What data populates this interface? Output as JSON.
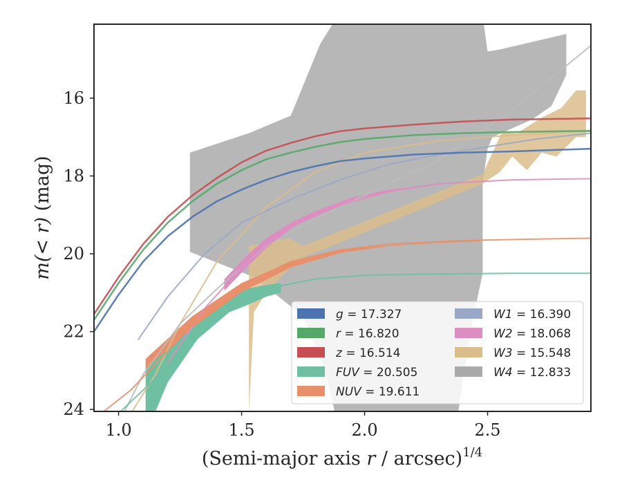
{
  "chart_data": {
    "type": "area",
    "xlabel_main": "(Semi-major axis ",
    "xlabel_var": "r",
    "xlabel_rest": " / arcsec)",
    "xlabel_sup": "1/4",
    "ylabel_main": "m(< r)",
    "ylabel_unit": " (mag)",
    "xlim": [
      0.9,
      2.92
    ],
    "ylim": [
      24.05,
      14.1
    ],
    "y_inverted": true,
    "xticks": [
      1.0,
      1.5,
      2.0,
      2.5
    ],
    "xtick_labels": [
      "1.0",
      "1.5",
      "2.0",
      "2.5"
    ],
    "yticks": [
      16,
      18,
      20,
      22,
      24
    ],
    "ytick_labels": [
      "16",
      "18",
      "20",
      "22",
      "24"
    ],
    "legend_position": "lower-right",
    "legend": [
      {
        "label": "g",
        "value": "= 17.327",
        "color": "#4c72b0"
      },
      {
        "label": "r",
        "value": "= 16.820",
        "color": "#55a868"
      },
      {
        "label": "z",
        "value": "= 16.514",
        "color": "#c44e52"
      },
      {
        "label": "FUV",
        "value": "= 20.505",
        "color": "#6fbfa2"
      },
      {
        "label": "NUV",
        "value": "= 19.611",
        "color": "#e8906c"
      },
      {
        "label": "W1",
        "value": "= 16.390",
        "color": "#9aa8c8"
      },
      {
        "label": "W2",
        "value": "= 18.068",
        "color": "#dd8ec1"
      },
      {
        "label": "W3",
        "value": "= 15.548",
        "color": "#dbbd8c"
      },
      {
        "label": "W4",
        "value": "= 12.833",
        "color": "#aaaaaa"
      }
    ],
    "series": [
      {
        "name": "W4",
        "kind": "band",
        "color": "#aaaaaa",
        "opacity": 0.85,
        "upper": [
          [
            1.29,
            17.4
          ],
          [
            1.53,
            16.9
          ],
          [
            1.7,
            16.45
          ],
          [
            1.82,
            14.6
          ],
          [
            1.9,
            13.8
          ],
          [
            2.3,
            13.8
          ],
          [
            2.48,
            13.9
          ],
          [
            2.5,
            14.8
          ],
          [
            2.55,
            14.75
          ],
          [
            2.82,
            14.35
          ],
          [
            2.82,
            15.4
          ],
          [
            2.76,
            16.2
          ],
          [
            2.68,
            16.55
          ]
        ],
        "lower": [
          [
            1.29,
            19.95
          ],
          [
            1.35,
            20.1
          ],
          [
            1.55,
            20.6
          ],
          [
            1.75,
            21.6
          ],
          [
            1.84,
            23.0
          ],
          [
            1.88,
            24.1
          ],
          [
            2.38,
            24.1
          ],
          [
            2.43,
            22.0
          ],
          [
            2.48,
            20.5
          ],
          [
            2.48,
            18.2
          ],
          [
            2.5,
            17.3
          ],
          [
            2.52,
            17.0
          ]
        ]
      },
      {
        "name": "W3",
        "kind": "band",
        "color": "#dbbd8c",
        "opacity": 0.85,
        "upper": [
          [
            1.53,
            19.8
          ],
          [
            1.69,
            19.6
          ],
          [
            1.7,
            19.62
          ],
          [
            1.75,
            19.8
          ],
          [
            2.48,
            17.95
          ],
          [
            2.52,
            17.4
          ],
          [
            2.56,
            16.85
          ],
          [
            2.62,
            16.9
          ],
          [
            2.72,
            16.5
          ],
          [
            2.8,
            16.25
          ],
          [
            2.86,
            15.8
          ],
          [
            2.9,
            15.8
          ]
        ],
        "lower": [
          [
            1.53,
            24.1
          ],
          [
            1.55,
            21.5
          ],
          [
            1.6,
            21.0
          ],
          [
            1.69,
            20.4
          ],
          [
            1.75,
            20.1
          ],
          [
            2.48,
            18.2
          ],
          [
            2.55,
            17.9
          ],
          [
            2.6,
            17.5
          ],
          [
            2.66,
            17.85
          ],
          [
            2.72,
            17.4
          ],
          [
            2.78,
            17.5
          ],
          [
            2.86,
            17.0
          ],
          [
            2.9,
            17.0
          ]
        ]
      },
      {
        "name": "FUV",
        "kind": "band",
        "color": "#6fbfa2",
        "opacity": 1.0,
        "upper": [
          [
            1.11,
            22.8
          ],
          [
            1.2,
            22.3
          ],
          [
            1.3,
            21.8
          ],
          [
            1.4,
            21.35
          ],
          [
            1.52,
            20.9
          ],
          [
            1.6,
            20.8
          ],
          [
            1.66,
            20.75
          ]
        ],
        "lower": [
          [
            1.11,
            24.05
          ],
          [
            1.15,
            24.05
          ],
          [
            1.2,
            23.3
          ],
          [
            1.32,
            22.2
          ],
          [
            1.45,
            21.5
          ],
          [
            1.53,
            21.3
          ],
          [
            1.6,
            21.1
          ],
          [
            1.66,
            21.0
          ]
        ]
      },
      {
        "name": "NUV",
        "kind": "band",
        "color": "#e8906c",
        "opacity": 1.0,
        "upper": [
          [
            1.11,
            22.7
          ],
          [
            1.3,
            21.6
          ],
          [
            1.5,
            20.75
          ],
          [
            1.7,
            20.2
          ],
          [
            1.9,
            19.9
          ],
          [
            2.1,
            19.78
          ],
          [
            2.3,
            19.7
          ],
          [
            2.47,
            19.65
          ]
        ],
        "lower": [
          [
            1.11,
            22.95
          ],
          [
            1.3,
            21.9
          ],
          [
            1.5,
            20.98
          ],
          [
            1.7,
            20.35
          ],
          [
            1.9,
            19.98
          ],
          [
            2.1,
            19.8
          ],
          [
            2.3,
            19.72
          ],
          [
            2.47,
            19.68
          ]
        ]
      },
      {
        "name": "W2",
        "kind": "band",
        "color": "#dd8ec1",
        "opacity": 1.0,
        "upper": [
          [
            1.43,
            20.65
          ],
          [
            1.52,
            20.05
          ],
          [
            1.6,
            19.6
          ],
          [
            1.7,
            19.2
          ],
          [
            1.8,
            18.9
          ],
          [
            1.95,
            18.55
          ],
          [
            2.1,
            18.35
          ],
          [
            2.3,
            18.2
          ]
        ],
        "lower": [
          [
            1.43,
            20.95
          ],
          [
            1.52,
            20.35
          ],
          [
            1.6,
            19.85
          ],
          [
            1.7,
            19.35
          ],
          [
            1.8,
            19.02
          ],
          [
            1.95,
            18.62
          ],
          [
            2.1,
            18.4
          ],
          [
            2.3,
            18.22
          ]
        ]
      },
      {
        "name": "W3",
        "kind": "line",
        "color": "#dbbd8c",
        "width": 2,
        "points": [
          [
            1.05,
            24.1
          ],
          [
            1.15,
            23.1
          ],
          [
            1.25,
            21.8
          ],
          [
            1.4,
            20.2
          ],
          [
            1.6,
            18.8
          ],
          [
            1.8,
            17.9
          ],
          [
            2.0,
            17.4
          ],
          [
            2.3,
            17.1
          ],
          [
            2.6,
            16.95
          ],
          [
            2.92,
            16.85
          ]
        ]
      },
      {
        "name": "W4",
        "kind": "line",
        "color": "#bbbbbb",
        "width": 2,
        "points": [
          [
            1.02,
            24.1
          ],
          [
            1.1,
            23.1
          ],
          [
            1.25,
            21.8
          ],
          [
            1.4,
            20.9
          ],
          [
            1.6,
            19.8
          ],
          [
            1.8,
            19.1
          ],
          [
            2.0,
            18.5
          ],
          [
            2.3,
            17.6
          ],
          [
            2.6,
            16.3
          ],
          [
            2.92,
            14.65
          ]
        ]
      },
      {
        "name": "W1",
        "kind": "line",
        "color": "#9aa8c8",
        "width": 2,
        "points": [
          [
            1.08,
            22.2
          ],
          [
            1.2,
            21.1
          ],
          [
            1.35,
            20.0
          ],
          [
            1.5,
            19.2
          ],
          [
            1.7,
            18.6
          ],
          [
            1.9,
            18.1
          ],
          [
            2.1,
            17.7
          ],
          [
            2.3,
            17.45
          ],
          [
            2.5,
            17.25
          ],
          [
            2.7,
            17.05
          ],
          [
            2.92,
            16.9
          ]
        ]
      },
      {
        "name": "W2",
        "kind": "line",
        "color": "#dd8ec1",
        "width": 2,
        "points": [
          [
            1.2,
            22.8
          ],
          [
            1.35,
            21.4
          ],
          [
            1.5,
            20.35
          ],
          [
            1.7,
            19.3
          ],
          [
            1.9,
            18.75
          ],
          [
            2.1,
            18.4
          ],
          [
            2.3,
            18.2
          ],
          [
            2.6,
            18.1
          ],
          [
            2.92,
            18.07
          ]
        ]
      },
      {
        "name": "FUV",
        "kind": "line",
        "color": "#6fbfa2",
        "width": 2,
        "points": [
          [
            1.0,
            24.1
          ],
          [
            1.15,
            23.2
          ],
          [
            1.3,
            22.2
          ],
          [
            1.45,
            21.35
          ],
          [
            1.6,
            20.9
          ],
          [
            1.8,
            20.65
          ],
          [
            2.0,
            20.55
          ],
          [
            2.3,
            20.52
          ],
          [
            2.6,
            20.5
          ],
          [
            2.92,
            20.5
          ]
        ]
      },
      {
        "name": "NUV",
        "kind": "line",
        "color": "#e8906c",
        "width": 2,
        "points": [
          [
            0.94,
            24.05
          ],
          [
            1.05,
            23.5
          ],
          [
            1.2,
            22.5
          ],
          [
            1.35,
            21.5
          ],
          [
            1.5,
            20.8
          ],
          [
            1.7,
            20.2
          ],
          [
            1.9,
            19.9
          ],
          [
            2.1,
            19.75
          ],
          [
            2.4,
            19.66
          ],
          [
            2.7,
            19.62
          ],
          [
            2.92,
            19.6
          ]
        ]
      },
      {
        "name": "g",
        "kind": "line",
        "color": "#4c72b0",
        "width": 2.5,
        "points": [
          [
            0.9,
            22.0
          ],
          [
            1.0,
            21.05
          ],
          [
            1.1,
            20.2
          ],
          [
            1.2,
            19.55
          ],
          [
            1.3,
            19.05
          ],
          [
            1.4,
            18.65
          ],
          [
            1.5,
            18.35
          ],
          [
            1.6,
            18.1
          ],
          [
            1.7,
            17.9
          ],
          [
            1.8,
            17.75
          ],
          [
            1.9,
            17.62
          ],
          [
            2.0,
            17.55
          ],
          [
            2.2,
            17.45
          ],
          [
            2.4,
            17.4
          ],
          [
            2.6,
            17.37
          ],
          [
            2.92,
            17.3
          ]
        ]
      },
      {
        "name": "r",
        "kind": "line",
        "color": "#55a868",
        "width": 2.5,
        "points": [
          [
            0.9,
            21.7
          ],
          [
            1.0,
            20.75
          ],
          [
            1.1,
            19.9
          ],
          [
            1.2,
            19.2
          ],
          [
            1.3,
            18.65
          ],
          [
            1.4,
            18.2
          ],
          [
            1.5,
            17.85
          ],
          [
            1.6,
            17.57
          ],
          [
            1.7,
            17.4
          ],
          [
            1.8,
            17.25
          ],
          [
            1.9,
            17.13
          ],
          [
            2.0,
            17.05
          ],
          [
            2.2,
            16.95
          ],
          [
            2.4,
            16.9
          ],
          [
            2.6,
            16.87
          ],
          [
            2.92,
            16.84
          ]
        ]
      },
      {
        "name": "z",
        "kind": "line",
        "color": "#c44e52",
        "width": 2.5,
        "points": [
          [
            0.9,
            21.55
          ],
          [
            1.0,
            20.6
          ],
          [
            1.1,
            19.75
          ],
          [
            1.2,
            19.05
          ],
          [
            1.3,
            18.5
          ],
          [
            1.4,
            18.05
          ],
          [
            1.5,
            17.65
          ],
          [
            1.6,
            17.35
          ],
          [
            1.7,
            17.15
          ],
          [
            1.8,
            16.98
          ],
          [
            1.9,
            16.85
          ],
          [
            2.0,
            16.78
          ],
          [
            2.2,
            16.68
          ],
          [
            2.4,
            16.6
          ],
          [
            2.6,
            16.55
          ],
          [
            2.92,
            16.52
          ]
        ]
      }
    ]
  }
}
